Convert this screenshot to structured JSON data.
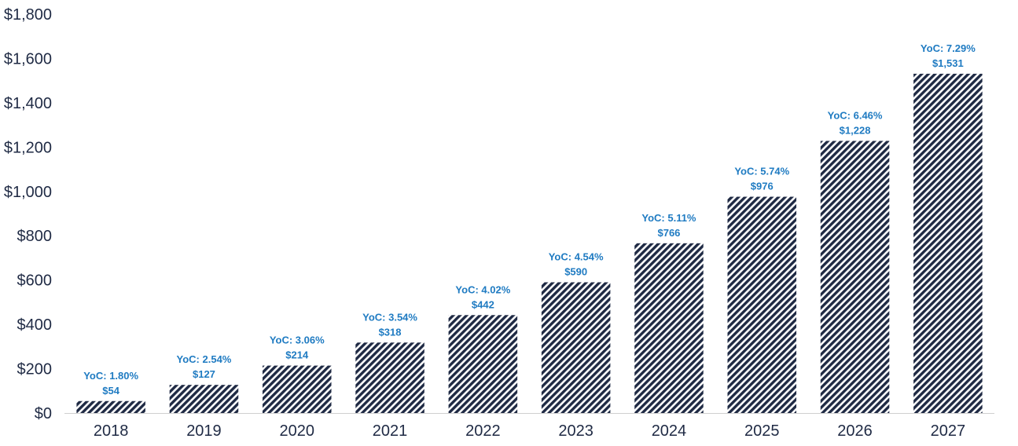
{
  "chart_data": {
    "type": "bar",
    "categories": [
      "2018",
      "2019",
      "2020",
      "2021",
      "2022",
      "2023",
      "2024",
      "2025",
      "2026",
      "2027"
    ],
    "values": [
      54,
      127,
      214,
      318,
      442,
      590,
      766,
      976,
      1228,
      1531
    ],
    "value_labels": [
      "$54",
      "$127",
      "$214",
      "$318",
      "$442",
      "$590",
      "$766",
      "$976",
      "$1,228",
      "$1,531"
    ],
    "yoc_labels": [
      "YoC: 1.80%",
      "YoC: 2.54%",
      "YoC: 3.06%",
      "YoC: 3.54%",
      "YoC: 4.02%",
      "YoC: 4.54%",
      "YoC: 5.11%",
      "YoC: 5.74%",
      "YoC: 6.46%",
      "YoC: 7.29%"
    ],
    "ylim": [
      0,
      1800
    ],
    "yticks": [
      0,
      200,
      400,
      600,
      800,
      1000,
      1200,
      1400,
      1600,
      1800
    ],
    "ytick_labels": [
      "$0",
      "$200",
      "$400",
      "$600",
      "$800",
      "$1,000",
      "$1,200",
      "$1,400",
      "$1,600",
      "$1,800"
    ],
    "title": "",
    "xlabel": "",
    "ylabel": "",
    "grid": false,
    "legend": "none",
    "bar_fill": "diagonal-hatch",
    "colors": {
      "hatch": "#1f2a44",
      "label": "#1f7bc2",
      "axis_text": "#1f2a44",
      "axis_line": "#d0d0d0"
    }
  }
}
